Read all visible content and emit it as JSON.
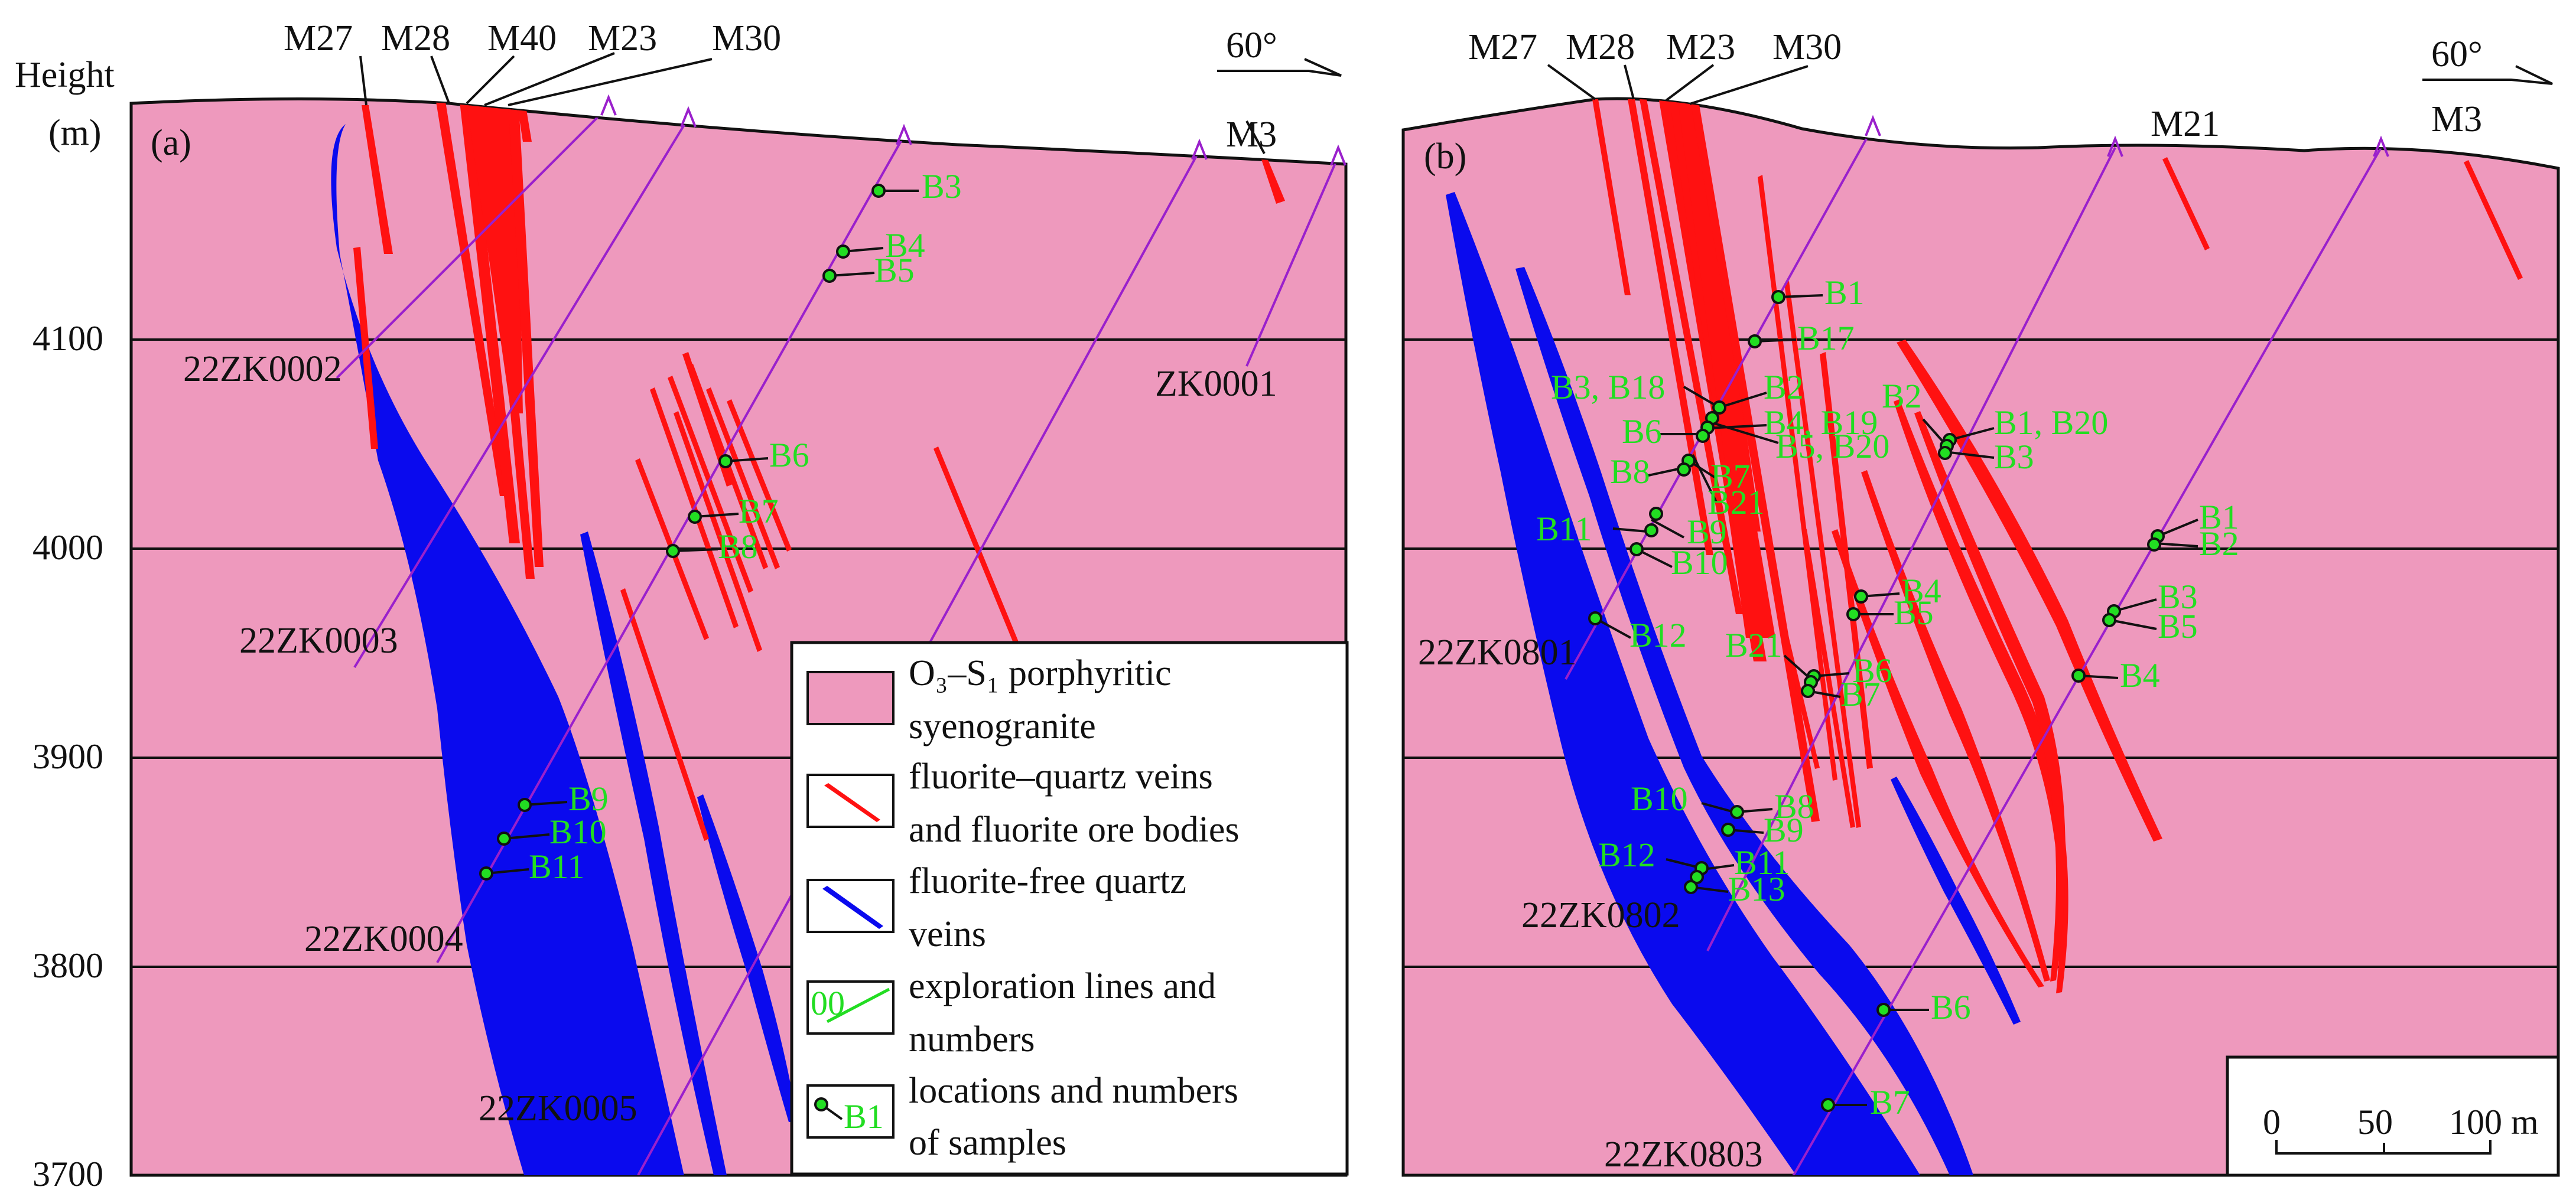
{
  "axis": {
    "title": "Height",
    "unit": "(m)",
    "ticks": [
      "4100",
      "4000",
      "3900",
      "3800",
      "3700"
    ]
  },
  "panel_a": {
    "letter": "(a)",
    "direction": "60°",
    "veins": [
      "M27",
      "M28",
      "M40",
      "M23",
      "M30",
      "M3"
    ],
    "boreholes": [
      "22ZK0002",
      "22ZK0003",
      "22ZK0004",
      "22ZK0005",
      "ZK0001"
    ],
    "samples": [
      "B3",
      "B4",
      "B5",
      "B6",
      "B7",
      "B8",
      "B9",
      "B10",
      "B11"
    ]
  },
  "panel_b": {
    "letter": "(b)",
    "direction": "60°",
    "veins": [
      "M27",
      "M28",
      "M23",
      "M30",
      "M21",
      "M3"
    ],
    "boreholes": [
      "22ZK0801",
      "22ZK0802",
      "22ZK0803"
    ],
    "samples_zk0801": [
      "B1",
      "B17",
      "B3, B18",
      "B2",
      "B6",
      "B4, B19",
      "B5, B20",
      "B8",
      "B7",
      "B21",
      "B11",
      "B9",
      "B10",
      "B12"
    ],
    "samples_zk0802": [
      "B2",
      "B1, B20",
      "B3",
      "B4",
      "B5",
      "B21",
      "B6",
      "B7",
      "B10",
      "B8",
      "B9",
      "B12",
      "B11",
      "B13",
      "B6",
      "B7"
    ],
    "samples_zk0803": [
      "B1",
      "B2",
      "B3",
      "B5",
      "B4"
    ]
  },
  "legend": {
    "granite": [
      "O₃–S₁ porphyritic",
      "syenogranite"
    ],
    "fluorite_veins": [
      "fluorite–quartz veins",
      "and fluorite ore bodies"
    ],
    "quartz_veins": [
      "fluorite-free quartz",
      "veins"
    ],
    "exploration": [
      "exploration lines and",
      "numbers"
    ],
    "exploration_symbol": "00",
    "samples": [
      "locations and numbers",
      "of samples"
    ],
    "sample_symbol": "B1"
  },
  "scale": {
    "labels": [
      "0",
      "50",
      "100 m"
    ]
  },
  "colors": {
    "granite": "#ee99bd",
    "fluorite": "#ff1111",
    "quartz": "#0a0aee",
    "borehole": "#9a20cc",
    "sample": "#22dd22"
  }
}
